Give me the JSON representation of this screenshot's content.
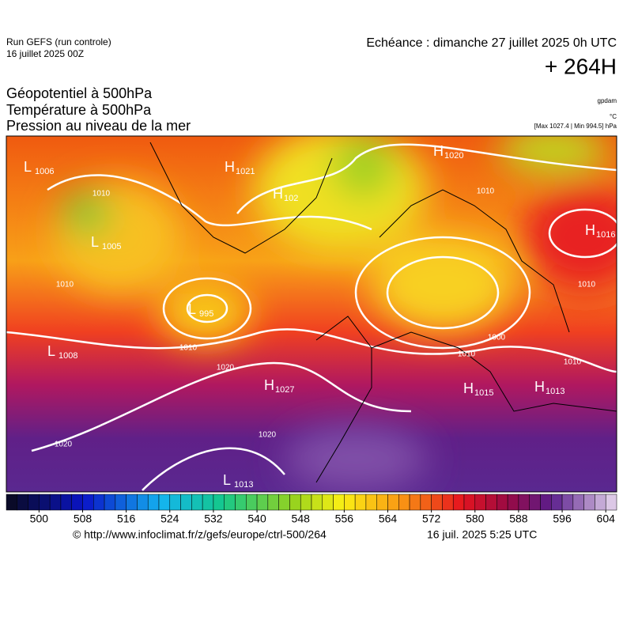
{
  "header": {
    "run": "Run GEFS (run controle)",
    "run_date": "16 juillet 2025 00Z",
    "valid": "Echéance : dimanche 27 juillet 2025 0h UTC",
    "lead": "+ 264H"
  },
  "titles": [
    "Géopotentiel à 500hPa",
    "Température à 500hPa",
    "Pression au niveau de la mer"
  ],
  "units": {
    "geopotential": "gpdam",
    "temperature": "°C",
    "pressure": "[Max 1027.4 | Min 994.5] hPa"
  },
  "centers": [
    {
      "label": "L",
      "value": 1006
    },
    {
      "label": "H",
      "value": 1021
    },
    {
      "label": "H",
      "value": 102
    },
    {
      "label": "L",
      "value": 1005
    },
    {
      "label": "L",
      "value": 995
    },
    {
      "label": "L",
      "value": 1008
    },
    {
      "label": "H",
      "value": 1027
    },
    {
      "label": "L",
      "value": 1013
    },
    {
      "label": "H",
      "value": 1020
    },
    {
      "label": "H",
      "value": 1016
    },
    {
      "label": "H",
      "value": 1013
    },
    {
      "label": "H",
      "value": 1015
    }
  ],
  "isobar_labels": [
    "1010",
    "1010",
    "1010",
    "1020",
    "1020",
    "1020",
    "1010",
    "1010",
    "1000",
    "1010",
    "1010"
  ],
  "colorbar": {
    "range": [
      494,
      606
    ],
    "step": 2,
    "ticks": [
      500,
      508,
      516,
      524,
      532,
      540,
      548,
      556,
      564,
      572,
      580,
      588,
      596,
      604
    ]
  },
  "footer": {
    "url": "© http://www.infoclimat.fr/z/gefs/europe/ctrl-500/264",
    "time": "16 juil. 2025  5:25 UTC"
  }
}
